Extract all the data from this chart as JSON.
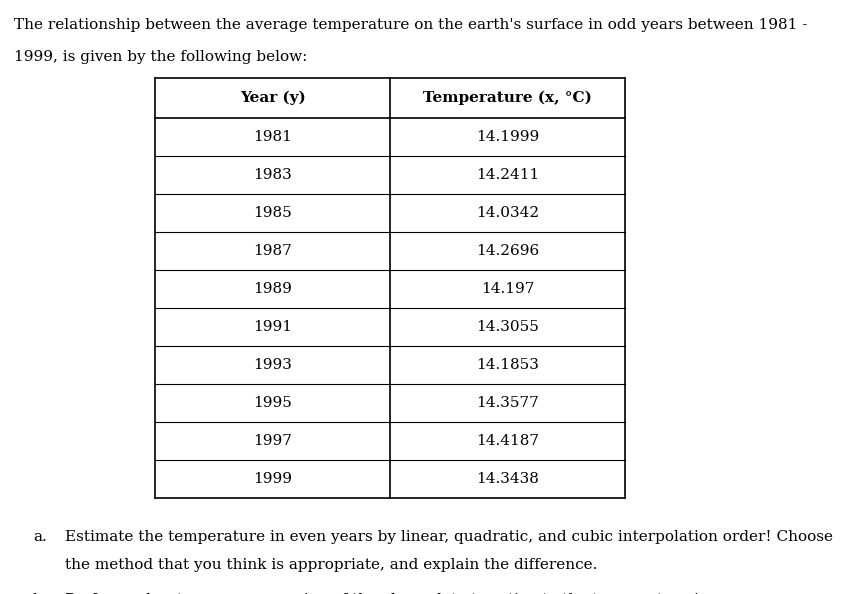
{
  "intro_text_line1": "The relationship between the average temperature on the earth's surface in odd years between 1981 -",
  "intro_text_line2": "1999, is given by the following below:",
  "col1_header": "Year (y)",
  "col2_header": "Temperature (x, °C)",
  "years": [
    "1981",
    "1983",
    "1985",
    "1987",
    "1989",
    "1991",
    "1993",
    "1995",
    "1997",
    "1999"
  ],
  "temperatures": [
    "14.1999",
    "14.2411",
    "14.0342",
    "14.2696",
    "14.197",
    "14.3055",
    "14.1853",
    "14.3577",
    "14.4187",
    "14.3438"
  ],
  "question_a_label": "a.",
  "question_a_text_line1": "Estimate the temperature in even years by linear, quadratic, and cubic interpolation order! Choose",
  "question_a_text_line2": "the method that you think is appropriate, and explain the difference.",
  "question_b_label": "b.",
  "question_b_text": "Perform a least-square regression of the above data to estimate the temperature in even years.",
  "background_color": "#ffffff",
  "text_color": "#000000",
  "table_border_color": "#000000",
  "font_size_body": 11.0,
  "font_size_table": 11.0,
  "fig_width": 8.61,
  "fig_height": 5.94,
  "dpi": 100
}
